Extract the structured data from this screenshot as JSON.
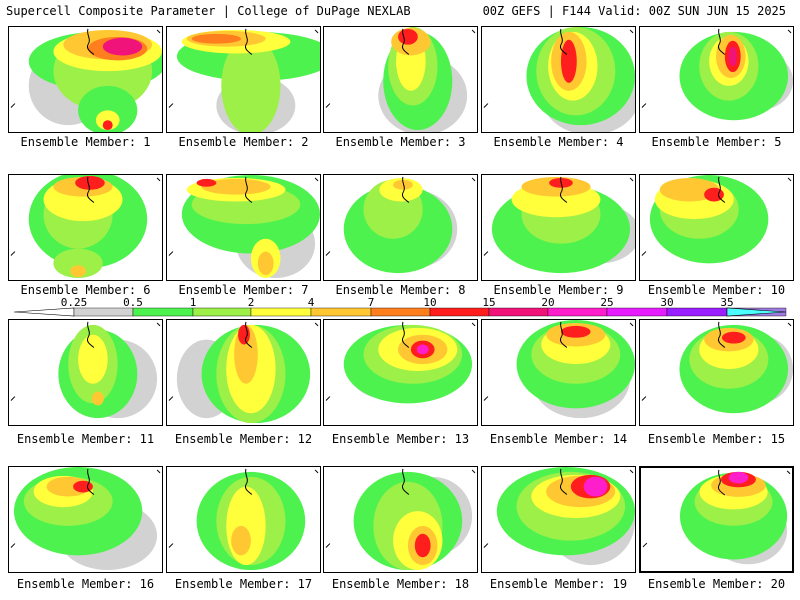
{
  "header": {
    "title": "Supercell Composite Parameter | College of DuPage NEXLAB",
    "run_info": "00Z GEFS | F144 Valid: 00Z SUN JUN 15 2025"
  },
  "selected_member": 20,
  "colorbar": {
    "labels": [
      "0.25",
      "0.5",
      "1",
      "2",
      "4",
      "7",
      "10",
      "15",
      "20",
      "25",
      "30",
      "35"
    ],
    "colors": [
      "#d2d2d2",
      "#4ef24e",
      "#9cf048",
      "#ffff3c",
      "#ffc832",
      "#ff7f1e",
      "#ff1e1e",
      "#f0147a",
      "#ff1ecc",
      "#e61eff",
      "#9b1eff",
      "#a07ae0",
      "#4cffff"
    ]
  },
  "members": [
    {
      "label": "Ensemble Member: 1"
    },
    {
      "label": "Ensemble Member: 2"
    },
    {
      "label": "Ensemble Member: 3"
    },
    {
      "label": "Ensemble Member: 4"
    },
    {
      "label": "Ensemble Member: 5"
    },
    {
      "label": "Ensemble Member: 6"
    },
    {
      "label": "Ensemble Member: 7"
    },
    {
      "label": "Ensemble Member: 8"
    },
    {
      "label": "Ensemble Member: 9"
    },
    {
      "label": "Ensemble Member: 10"
    },
    {
      "label": "Ensemble Member: 11"
    },
    {
      "label": "Ensemble Member: 12"
    },
    {
      "label": "Ensemble Member: 13"
    },
    {
      "label": "Ensemble Member: 14"
    },
    {
      "label": "Ensemble Member: 15"
    },
    {
      "label": "Ensemble Member: 16"
    },
    {
      "label": "Ensemble Member: 17"
    },
    {
      "label": "Ensemble Member: 18"
    },
    {
      "label": "Ensemble Member: 19"
    },
    {
      "label": "Ensemble Member: 20"
    }
  ]
}
